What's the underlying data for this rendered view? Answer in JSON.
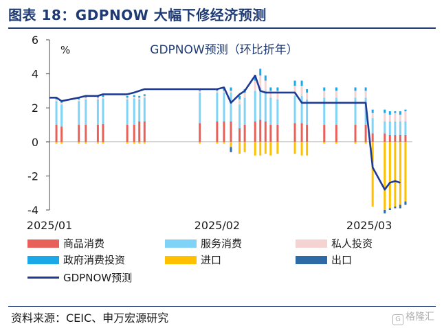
{
  "header": {
    "title": "图表 18：GDPNOW 大幅下修经济预测"
  },
  "footer": {
    "source": "资料来源：CEIC、申万宏源研究",
    "watermark": "格隆汇",
    "watermark_mark": "G"
  },
  "chart_data": {
    "type": "bar",
    "title": "GDPNOW预测（环比折年）",
    "ylabel": "%",
    "ylim": [
      -4,
      6
    ],
    "yticks": [
      -4,
      -2,
      0,
      2,
      4,
      6
    ],
    "xlabels": [
      "2025/01",
      "2025/02",
      "2025/03"
    ],
    "colors": {
      "goods": "#e8605a",
      "services": "#7fd3f7",
      "private_inv": "#f5d3d3",
      "gov": "#1ba8e6",
      "imports": "#ffc000",
      "exports": "#2e6aa5",
      "line": "#1f3a93"
    },
    "legend": [
      {
        "key": "goods",
        "label": "商品消费"
      },
      {
        "key": "services",
        "label": "服务消费"
      },
      {
        "key": "private_inv",
        "label": "私人投资"
      },
      {
        "key": "gov",
        "label": "政府消费投资"
      },
      {
        "key": "imports",
        "label": "进口"
      },
      {
        "key": "exports",
        "label": "出口"
      },
      {
        "key": "line",
        "label": "GDPNOW预测"
      }
    ],
    "series_names": [
      "goods",
      "services",
      "private_inv",
      "gov",
      "imports",
      "exports"
    ],
    "bars": [
      {
        "i": 4,
        "v": [
          1.0,
          1.4,
          0.1,
          0.1,
          -0.1,
          0.0
        ]
      },
      {
        "i": 7,
        "v": [
          0.9,
          1.3,
          0.1,
          0.1,
          -0.1,
          0.0
        ]
      },
      {
        "i": 17,
        "v": [
          1.0,
          1.4,
          0.1,
          0.1,
          -0.1,
          0.0
        ]
      },
      {
        "i": 21,
        "v": [
          1.0,
          1.5,
          0.1,
          0.1,
          -0.1,
          0.0
        ]
      },
      {
        "i": 28,
        "v": [
          1.0,
          1.5,
          0.1,
          0.1,
          -0.1,
          0.0
        ]
      },
      {
        "i": 31,
        "v": [
          1.05,
          1.5,
          0.1,
          0.1,
          -0.1,
          0.0
        ]
      },
      {
        "i": 45,
        "v": [
          1.0,
          1.5,
          0.1,
          0.1,
          -0.1,
          0.0
        ]
      },
      {
        "i": 49,
        "v": [
          1.0,
          1.55,
          0.1,
          0.1,
          -0.1,
          0.0
        ]
      },
      {
        "i": 52,
        "v": [
          1.2,
          1.3,
          0.1,
          0.1,
          -0.1,
          0.0
        ]
      },
      {
        "i": 55,
        "v": [
          1.2,
          1.4,
          0.1,
          0.1,
          -0.1,
          0.0
        ]
      },
      {
        "i": 87,
        "v": [
          1.1,
          1.8,
          0.1,
          0.1,
          -0.1,
          0.0
        ]
      },
      {
        "i": 97,
        "v": [
          1.2,
          1.7,
          0.1,
          0.1,
          -0.1,
          0.0
        ]
      },
      {
        "i": 101,
        "v": [
          1.2,
          1.7,
          0.1,
          0.2,
          -0.1,
          0.0
        ]
      },
      {
        "i": 105,
        "v": [
          1.2,
          1.7,
          0.1,
          0.2,
          -0.3,
          -0.3
        ]
      },
      {
        "i": 110,
        "v": [
          0.8,
          1.4,
          0.3,
          0.2,
          -0.7,
          0.0
        ]
      },
      {
        "i": 113,
        "v": [
          1.0,
          1.6,
          0.3,
          0.2,
          -0.6,
          0.0
        ]
      },
      {
        "i": 119,
        "v": [
          1.2,
          1.8,
          0.6,
          0.3,
          -0.8,
          0.0
        ]
      },
      {
        "i": 122,
        "v": [
          1.3,
          1.9,
          0.7,
          0.4,
          -0.8,
          0.0
        ]
      },
      {
        "i": 125,
        "v": [
          1.2,
          1.8,
          0.6,
          0.3,
          -0.7,
          0.0
        ]
      },
      {
        "i": 128,
        "v": [
          1.0,
          1.6,
          0.4,
          0.2,
          -0.8,
          0.0
        ]
      },
      {
        "i": 132,
        "v": [
          1.0,
          1.5,
          0.5,
          0.2,
          -0.7,
          0.0
        ]
      },
      {
        "i": 142,
        "v": [
          1.1,
          1.6,
          0.6,
          0.3,
          -0.7,
          0.0
        ]
      },
      {
        "i": 146,
        "v": [
          1.1,
          1.6,
          0.6,
          0.3,
          -0.8,
          0.0
        ]
      },
      {
        "i": 149,
        "v": [
          1.0,
          1.5,
          0.4,
          0.2,
          -0.8,
          0.0
        ]
      },
      {
        "i": 159,
        "v": [
          1.0,
          1.6,
          0.4,
          0.2,
          -0.1,
          0.0
        ]
      },
      {
        "i": 166,
        "v": [
          1.0,
          1.6,
          0.4,
          0.2,
          -0.1,
          0.0
        ]
      },
      {
        "i": 177,
        "v": [
          1.0,
          1.6,
          0.4,
          0.2,
          -0.1,
          0.0
        ]
      },
      {
        "i": 183,
        "v": [
          1.0,
          1.6,
          0.4,
          0.2,
          -0.1,
          0.0
        ]
      },
      {
        "i": 187,
        "v": [
          0.5,
          0.9,
          0.3,
          0.2,
          -3.8,
          0.0
        ]
      },
      {
        "i": 194,
        "v": [
          0.5,
          0.7,
          0.5,
          0.2,
          -4.0,
          -0.2
        ]
      },
      {
        "i": 197,
        "v": [
          0.4,
          0.8,
          0.4,
          0.2,
          -3.9,
          -0.1
        ]
      },
      {
        "i": 200,
        "v": [
          0.4,
          0.8,
          0.5,
          0.1,
          -3.8,
          -0.1
        ]
      },
      {
        "i": 203,
        "v": [
          0.4,
          0.8,
          0.4,
          0.2,
          -3.7,
          -0.2
        ]
      },
      {
        "i": 206,
        "v": [
          0.4,
          0.8,
          0.6,
          0.1,
          -3.5,
          -0.2
        ]
      }
    ],
    "line": [
      [
        0,
        2.6
      ],
      [
        4,
        2.6
      ],
      [
        7,
        2.4
      ],
      [
        17,
        2.6
      ],
      [
        21,
        2.7
      ],
      [
        28,
        2.7
      ],
      [
        31,
        2.8
      ],
      [
        45,
        2.8
      ],
      [
        49,
        2.9
      ],
      [
        52,
        3.0
      ],
      [
        55,
        3.1
      ],
      [
        87,
        3.1
      ],
      [
        97,
        3.1
      ],
      [
        101,
        3.2
      ],
      [
        105,
        2.3
      ],
      [
        110,
        2.8
      ],
      [
        113,
        3.0
      ],
      [
        119,
        3.9
      ],
      [
        122,
        3.0
      ],
      [
        125,
        2.9
      ],
      [
        128,
        2.9
      ],
      [
        132,
        2.9
      ],
      [
        142,
        2.9
      ],
      [
        146,
        2.3
      ],
      [
        149,
        2.3
      ],
      [
        159,
        2.3
      ],
      [
        166,
        2.3
      ],
      [
        177,
        2.3
      ],
      [
        183,
        2.3
      ],
      [
        187,
        -1.5
      ],
      [
        194,
        -2.8
      ],
      [
        197,
        -2.4
      ],
      [
        200,
        -2.3
      ],
      [
        203,
        -2.4
      ]
    ],
    "xtick_positions": [
      0,
      97,
      185
    ]
  }
}
